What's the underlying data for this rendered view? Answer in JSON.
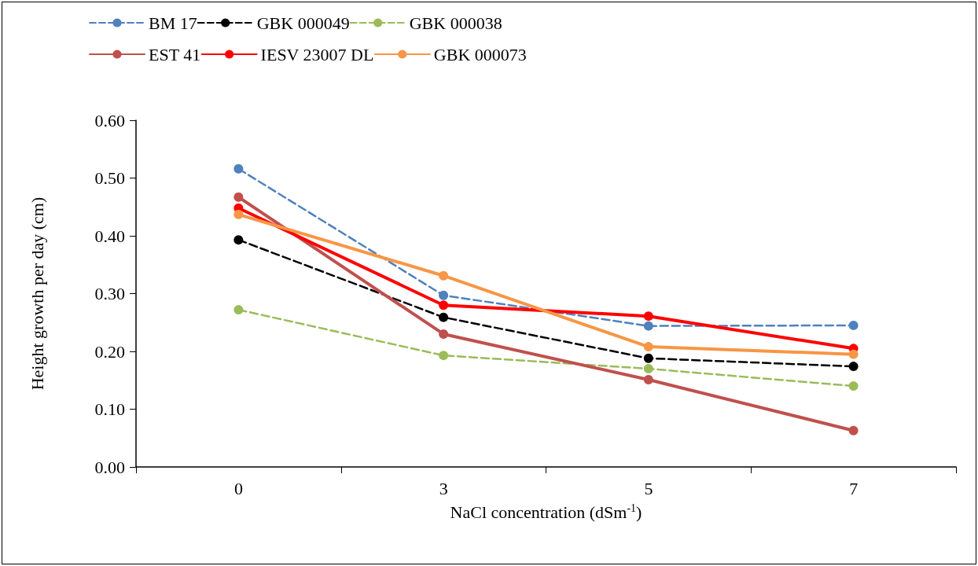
{
  "chart_data": {
    "type": "line",
    "xlabel": "NaCl concentration (dSm$^{-1}$)",
    "ylabel": "Height growth per day (cm)",
    "categories": [
      "0",
      "3",
      "5",
      "7"
    ],
    "ylim": [
      0,
      0.6
    ],
    "yticks": [
      {
        "value": 0,
        "label": "0.00"
      },
      {
        "value": 0.1,
        "label": "0.10"
      },
      {
        "value": 0.2,
        "label": "0.20"
      },
      {
        "value": 0.3,
        "label": "0.30"
      },
      {
        "value": 0.4,
        "label": "0.40"
      },
      {
        "value": 0.5,
        "label": "0.50"
      },
      {
        "value": 0.6,
        "label": "0.60"
      }
    ],
    "grid": false,
    "legend": "top",
    "marker": "circle",
    "series": [
      {
        "name": "BM 17",
        "color": "#4f81bd",
        "line_style": "dashed",
        "values": [
          0.516,
          0.297,
          0.244,
          0.245
        ]
      },
      {
        "name": "GBK 000049",
        "color": "#000000",
        "line_style": "dashed",
        "values": [
          0.393,
          0.259,
          0.188,
          0.174
        ]
      },
      {
        "name": "GBK 000038",
        "color": "#9bbb59",
        "line_style": "dashed",
        "values": [
          0.272,
          0.193,
          0.17,
          0.14
        ]
      },
      {
        "name": "EST 41",
        "color": "#c0504d",
        "line_style": "solid",
        "values": [
          0.467,
          0.23,
          0.151,
          0.063
        ]
      },
      {
        "name": "IESV 23007 DL",
        "color": "#ff0000",
        "line_style": "solid",
        "values": [
          0.448,
          0.28,
          0.261,
          0.205
        ]
      },
      {
        "name": "GBK 000073",
        "color": "#f79646",
        "line_style": "solid",
        "values": [
          0.437,
          0.331,
          0.208,
          0.195
        ]
      }
    ]
  }
}
